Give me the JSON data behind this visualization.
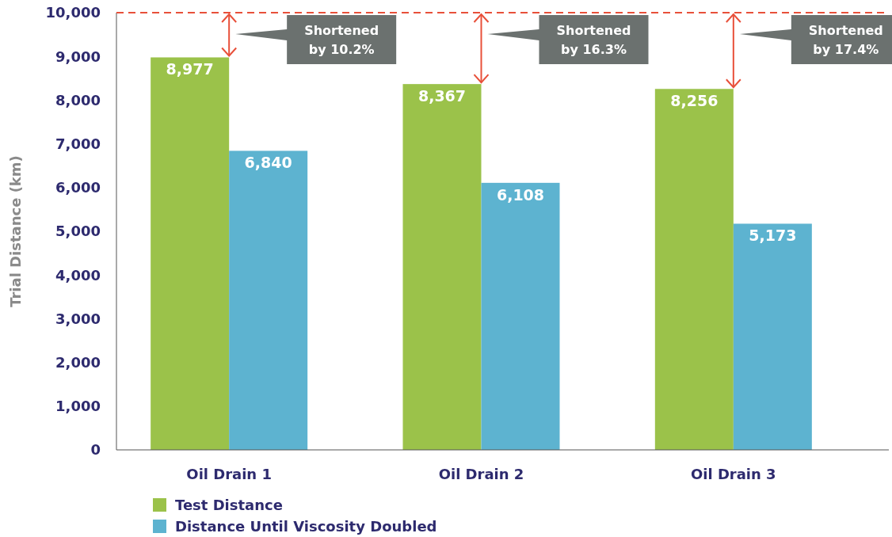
{
  "chart_data": {
    "type": "bar",
    "ylabel": "Trial Distance (km)",
    "categories": [
      "Oil Drain 1",
      "Oil Drain 2",
      "Oil Drain 3"
    ],
    "series": [
      {
        "name": "Test Distance",
        "color": "#9bc24a",
        "values": [
          8977,
          8367,
          8256
        ]
      },
      {
        "name": "Distance Until Viscosity Doubled",
        "color": "#5db3d0",
        "values": [
          6840,
          6108,
          5173
        ]
      }
    ],
    "ylim": [
      0,
      10000
    ],
    "yticks": [
      {
        "value": 0,
        "label": "0"
      },
      {
        "value": 1000,
        "label": "1,000"
      },
      {
        "value": 2000,
        "label": "2,000"
      },
      {
        "value": 3000,
        "label": "3,000"
      },
      {
        "value": 4000,
        "label": "4,000"
      },
      {
        "value": 5000,
        "label": "5,000"
      },
      {
        "value": 6000,
        "label": "6,000"
      },
      {
        "value": 7000,
        "label": "7,000"
      },
      {
        "value": 8000,
        "label": "8,000"
      },
      {
        "value": 9000,
        "label": "9,000"
      },
      {
        "value": 10000,
        "label": "10,000"
      }
    ],
    "value_labels": [
      [
        "8,977",
        "8,367",
        "8,256"
      ],
      [
        "6,840",
        "6,108",
        "5,173"
      ]
    ],
    "ref_lines": [
      {
        "axis": "y",
        "value": 10000,
        "color": "#e8503a",
        "line_style": "dashed"
      }
    ],
    "annotations": [
      "Shortened by 10.2%",
      "Shortened by 16.3%",
      "Shortened by 17.4%"
    ],
    "grid": false,
    "legend": "bottom left"
  }
}
